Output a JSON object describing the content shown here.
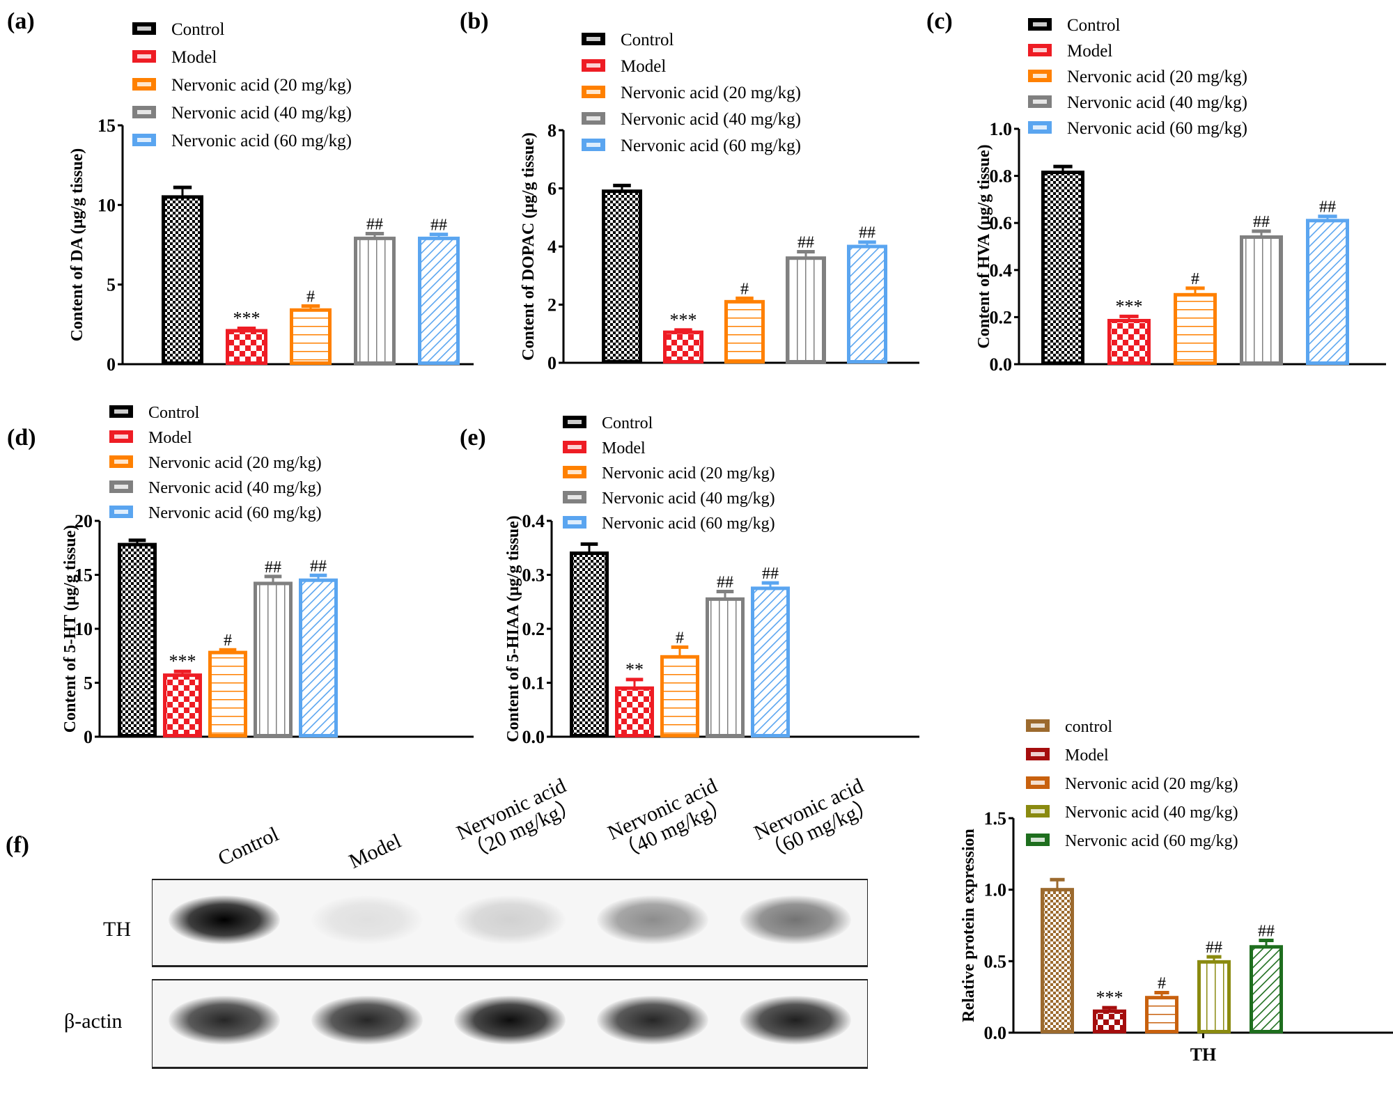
{
  "panels": {
    "a": {
      "label": "(a)"
    },
    "b": {
      "label": "(b)"
    },
    "c": {
      "label": "(c)"
    },
    "d": {
      "label": "(d)"
    },
    "e": {
      "label": "(e)"
    },
    "f": {
      "label": "(f)"
    }
  },
  "legend_neuro": [
    "Control",
    "Model",
    "Nervonic acid (20 mg/kg)",
    "Nervonic acid (40 mg/kg)",
    "Nervonic acid (60 mg/kg)"
  ],
  "legend_protein": [
    "control",
    "Model",
    "Nervonic acid (20 mg/kg)",
    "Nervonic acid (40 mg/kg)",
    "Nervonic acid (60 mg/kg)"
  ],
  "colors": {
    "neuro": [
      "#000000",
      "#ee1c24",
      "#ff8000",
      "#808080",
      "#5aa5f0"
    ],
    "protein": [
      "#9c6a2e",
      "#a50d0d",
      "#c8610e",
      "#8a8a10",
      "#1e6e1e"
    ]
  },
  "blot": {
    "lanes": [
      "Control",
      "Model",
      "Nervonic acid\n（20 mg/kg）",
      "Nervonic acid\n（40 mg/kg）",
      "Nervonic acid\n（60 mg/kg）"
    ],
    "rows": [
      "TH",
      "β-actin"
    ],
    "th_intensity": [
      1.0,
      0.12,
      0.18,
      0.45,
      0.55
    ],
    "actin_intensity": [
      0.85,
      0.85,
      0.95,
      0.85,
      0.88
    ]
  },
  "chart_data": [
    {
      "id": "a",
      "type": "bar",
      "title": "",
      "xlabel": "",
      "ylabel": "Content of DA (μg/g tissue)",
      "ylim": [
        0,
        15
      ],
      "yticks": [
        "0",
        "5",
        "10",
        "15"
      ],
      "ytick_values": [
        0,
        5,
        10,
        15
      ],
      "categories": [
        "Control",
        "Model",
        "Nervonic acid (20 mg/kg)",
        "Nervonic acid (40 mg/kg)",
        "Nervonic acid (60 mg/kg)"
      ],
      "values": [
        10.5,
        2.1,
        3.4,
        7.9,
        7.9
      ],
      "errors": [
        0.6,
        0.15,
        0.25,
        0.3,
        0.25
      ],
      "annotations": [
        "",
        "***",
        "#",
        "##",
        "##"
      ],
      "legend": "top"
    },
    {
      "id": "b",
      "type": "bar",
      "title": "",
      "xlabel": "",
      "ylabel": "Content of DOPAC (μg/g tissue)",
      "ylim": [
        0,
        8
      ],
      "yticks": [
        "0",
        "2",
        "4",
        "6",
        "8"
      ],
      "ytick_values": [
        0,
        2,
        4,
        6,
        8
      ],
      "categories": [
        "Control",
        "Model",
        "Nervonic acid (20 mg/kg)",
        "Nervonic acid (40 mg/kg)",
        "Nervonic acid (60 mg/kg)"
      ],
      "values": [
        5.9,
        1.05,
        2.1,
        3.6,
        4.0
      ],
      "errors": [
        0.2,
        0.08,
        0.12,
        0.22,
        0.15
      ],
      "annotations": [
        "",
        "***",
        "#",
        "##",
        "##"
      ],
      "legend": "top"
    },
    {
      "id": "c",
      "type": "bar",
      "title": "",
      "xlabel": "",
      "ylabel": "Content of HVA (μg/g tissue)",
      "ylim": [
        0,
        1.0
      ],
      "yticks": [
        "0.0",
        "0.2",
        "0.4",
        "0.6",
        "0.8",
        "1.0"
      ],
      "ytick_values": [
        0,
        0.2,
        0.4,
        0.6,
        0.8,
        1.0
      ],
      "categories": [
        "Control",
        "Model",
        "Nervonic acid (20 mg/kg)",
        "Nervonic acid (40 mg/kg)",
        "Nervonic acid (60 mg/kg)"
      ],
      "values": [
        0.815,
        0.185,
        0.295,
        0.54,
        0.61
      ],
      "errors": [
        0.025,
        0.018,
        0.028,
        0.025,
        0.018
      ],
      "annotations": [
        "",
        "***",
        "#",
        "##",
        "##"
      ],
      "legend": "top"
    },
    {
      "id": "d",
      "type": "bar",
      "title": "",
      "xlabel": "",
      "ylabel": "Content of 5-HT (μg/g tissue)",
      "ylim": [
        0,
        20
      ],
      "yticks": [
        "0",
        "5",
        "10",
        "15",
        "20"
      ],
      "ytick_values": [
        0,
        5,
        10,
        15,
        20
      ],
      "categories": [
        "Control",
        "Model",
        "Nervonic acid (20 mg/kg)",
        "Nervonic acid (40 mg/kg)",
        "Nervonic acid (60 mg/kg)"
      ],
      "values": [
        17.8,
        5.7,
        7.8,
        14.2,
        14.5
      ],
      "errors": [
        0.4,
        0.35,
        0.25,
        0.65,
        0.45
      ],
      "annotations": [
        "",
        "***",
        "#",
        "##",
        "##"
      ],
      "legend": "top"
    },
    {
      "id": "e",
      "type": "bar",
      "title": "",
      "xlabel": "",
      "ylabel": "Content of 5-HIAA (μg/g tissue)",
      "ylim": [
        0,
        0.4
      ],
      "yticks": [
        "0.0",
        "0.1",
        "0.2",
        "0.3",
        "0.4"
      ],
      "ytick_values": [
        0,
        0.1,
        0.2,
        0.3,
        0.4
      ],
      "categories": [
        "Control",
        "Model",
        "Nervonic acid (20 mg/kg)",
        "Nervonic acid (40 mg/kg)",
        "Nervonic acid (60 mg/kg)"
      ],
      "values": [
        0.34,
        0.09,
        0.148,
        0.255,
        0.275
      ],
      "errors": [
        0.017,
        0.016,
        0.018,
        0.014,
        0.01
      ],
      "annotations": [
        "",
        "**",
        "#",
        "##",
        "##"
      ],
      "legend": "top"
    },
    {
      "id": "f",
      "type": "bar",
      "title": "",
      "xlabel": "TH",
      "ylabel": "Relative protein expression",
      "ylim": [
        0,
        1.5
      ],
      "yticks": [
        "0.0",
        "0.5",
        "1.0",
        "1.5"
      ],
      "ytick_values": [
        0,
        0.5,
        1.0,
        1.5
      ],
      "categories": [
        "control",
        "Model",
        "Nervonic acid (20 mg/kg)",
        "Nervonic acid (40 mg/kg)",
        "Nervonic acid (60 mg/kg)"
      ],
      "values": [
        1.0,
        0.15,
        0.245,
        0.495,
        0.6
      ],
      "errors": [
        0.07,
        0.025,
        0.035,
        0.035,
        0.045
      ],
      "annotations": [
        "",
        "***",
        "#",
        "##",
        "##"
      ],
      "legend": "top"
    }
  ]
}
